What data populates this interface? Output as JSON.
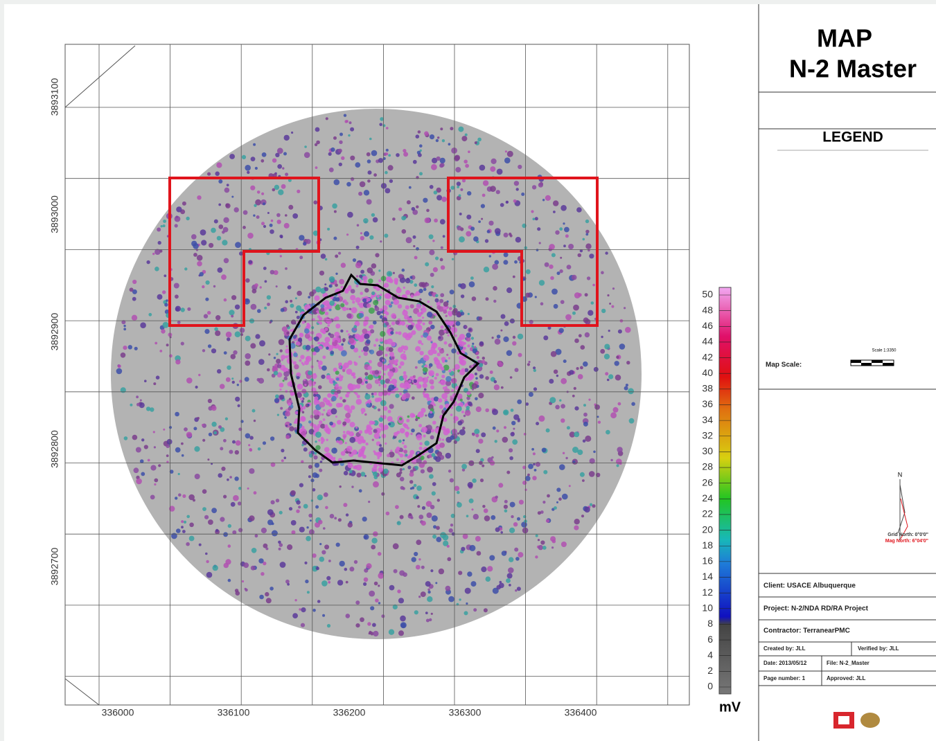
{
  "map": {
    "x_ticks": [
      336000,
      336100,
      336200,
      336300,
      336400
    ],
    "y_ticks": [
      3893100,
      3893000,
      3892900,
      3892800,
      3892700
    ],
    "colorbar": {
      "ticks": [
        0,
        2,
        4,
        6,
        8,
        10,
        12,
        14,
        16,
        18,
        20,
        22,
        24,
        26,
        28,
        30,
        32,
        34,
        36,
        38,
        40,
        42,
        44,
        46,
        48,
        50
      ],
      "unit": "mV"
    }
  },
  "panel": {
    "title": [
      "MAP",
      "N-2 Master"
    ],
    "legend": {
      "heading": "LEGEND",
      "map_scale_label": "Map Scale:",
      "scale_text": "Scale 1:3350"
    },
    "north": {
      "n": "N",
      "grid_north": "Grid North: 0°0'0\"",
      "mag_north": "Mag North: 6°04'0\""
    },
    "info": {
      "client": "Client: USACE Albuquerque",
      "project": "Project: N-2/NDA RD/RA Project",
      "contractor": "Contractor: TerranearPMC",
      "created_by": "Created by: JLL",
      "verified_by": "Verified by: JLL",
      "date": "Date: 2013/05/12",
      "file": "File: N-2_Master",
      "page_number": "Page number: 1",
      "approved": "Approved: JLL"
    }
  }
}
